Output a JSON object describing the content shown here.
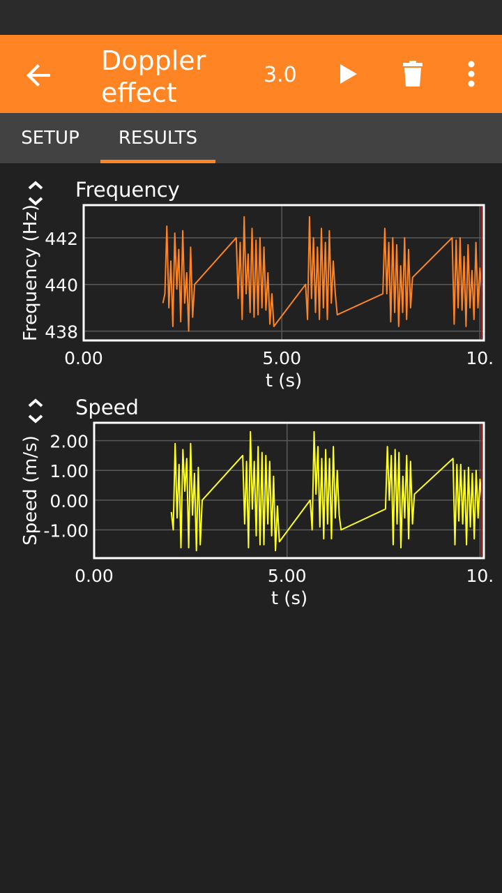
{
  "app_bar": {
    "title_line1": "Doppler",
    "title_line2": "effect",
    "rate": "3.0",
    "back_icon": "arrow-left-icon",
    "play_icon": "play-icon",
    "delete_icon": "trash-icon",
    "menu_icon": "more-vertical-icon"
  },
  "tabs": [
    {
      "label": "SETUP",
      "selected": false
    },
    {
      "label": "RESULTS",
      "selected": true
    }
  ],
  "colors": {
    "accent": "#ff8424",
    "frequency_line": "#ff8424",
    "speed_line": "#ffff1e"
  },
  "graphs": [
    {
      "title": "Frequency",
      "ylabel": "Frequency (Hz)",
      "xlabel": "t (s)",
      "yticks": [
        "442",
        "440",
        "438"
      ],
      "xticks": [
        "0.00",
        "5.00",
        "10."
      ]
    },
    {
      "title": "Speed",
      "ylabel": "Speed (m/s)",
      "xlabel": "t (s)",
      "yticks": [
        "2.00",
        "1.00",
        "0.00",
        "-1.00"
      ],
      "xticks": [
        "0.00",
        "5.00",
        "10."
      ]
    }
  ],
  "chart_data": [
    {
      "type": "line",
      "title": "Frequency",
      "xlabel": "t (s)",
      "ylabel": "Frequency (Hz)",
      "xlim": [
        0,
        10.1
      ],
      "ylim": [
        437.6,
        443.4
      ],
      "grid": true,
      "series": [
        {
          "x": [
            2.0,
            2.05,
            2.1,
            2.15,
            2.2,
            2.25,
            2.3,
            2.35,
            2.4,
            2.45,
            2.5,
            2.55,
            2.6,
            2.65,
            2.7,
            2.75,
            2.8,
            3.85,
            3.9,
            3.95,
            4.0,
            4.05,
            4.1,
            4.15,
            4.2,
            4.25,
            4.3,
            4.35,
            4.4,
            4.45,
            4.5,
            4.55,
            4.6,
            4.65,
            4.7,
            4.75,
            4.8,
            5.6,
            5.65,
            5.7,
            5.75,
            5.8,
            5.85,
            5.9,
            5.95,
            6.0,
            6.05,
            6.1,
            6.15,
            6.2,
            6.25,
            6.3,
            6.35,
            6.4,
            7.55,
            7.6,
            7.65,
            7.7,
            7.75,
            7.8,
            7.85,
            7.9,
            7.95,
            8.0,
            8.05,
            8.1,
            8.15,
            8.2,
            8.25,
            8.3,
            9.3,
            9.35,
            9.4,
            9.45,
            9.5,
            9.55,
            9.6,
            9.65,
            9.7,
            9.75,
            9.8,
            9.85,
            9.9,
            9.95,
            10.0,
            10.05
          ],
          "y": [
            439.2,
            439.6,
            442.5,
            439.0,
            441.0,
            438.2,
            442.2,
            439.8,
            441.5,
            438.4,
            442.3,
            439.2,
            440.5,
            438.0,
            441.6,
            438.6,
            440.0,
            442.0,
            439.4,
            441.8,
            438.5,
            442.9,
            439.6,
            441.3,
            438.8,
            442.4,
            438.6,
            441.9,
            438.7,
            442.0,
            439.0,
            441.6,
            438.9,
            440.5,
            438.3,
            439.6,
            438.2,
            440.0,
            438.5,
            442.9,
            439.4,
            442.0,
            438.8,
            441.6,
            438.5,
            442.4,
            439.0,
            441.8,
            438.5,
            442.3,
            439.2,
            441.0,
            439.6,
            438.7,
            439.6,
            442.4,
            439.6,
            441.8,
            438.4,
            442.0,
            438.8,
            441.7,
            438.2,
            440.8,
            438.8,
            442.0,
            438.5,
            441.5,
            439.0,
            440.3,
            442.0,
            438.3,
            441.9,
            439.0,
            442.0,
            438.9,
            441.2,
            438.2,
            441.7,
            439.0,
            440.6,
            438.5,
            441.8,
            439.0,
            440.7,
            439.7
          ]
        }
      ]
    },
    {
      "type": "line",
      "title": "Speed",
      "xlabel": "t (s)",
      "ylabel": "Speed (m/s)",
      "xlim": [
        0,
        10.1
      ],
      "ylim": [
        -1.95,
        2.6
      ],
      "grid": true,
      "series": [
        {
          "x": [
            2.0,
            2.05,
            2.1,
            2.15,
            2.2,
            2.25,
            2.3,
            2.35,
            2.4,
            2.45,
            2.5,
            2.55,
            2.6,
            2.65,
            2.7,
            2.75,
            2.8,
            3.85,
            3.9,
            3.95,
            4.0,
            4.05,
            4.1,
            4.15,
            4.2,
            4.25,
            4.3,
            4.35,
            4.4,
            4.45,
            4.5,
            4.55,
            4.6,
            4.65,
            4.7,
            4.75,
            4.8,
            5.6,
            5.65,
            5.7,
            5.75,
            5.8,
            5.85,
            5.9,
            5.95,
            6.0,
            6.05,
            6.1,
            6.15,
            6.2,
            6.25,
            6.3,
            6.35,
            6.4,
            7.55,
            7.6,
            7.65,
            7.7,
            7.75,
            7.8,
            7.85,
            7.9,
            7.95,
            8.0,
            8.05,
            8.1,
            8.15,
            8.2,
            8.25,
            8.3,
            9.3,
            9.35,
            9.4,
            9.45,
            9.5,
            9.55,
            9.6,
            9.65,
            9.7,
            9.75,
            9.8,
            9.85,
            9.9,
            9.95,
            10.0,
            10.05
          ],
          "y": [
            -0.4,
            -1.0,
            1.9,
            -0.6,
            1.2,
            -1.6,
            1.7,
            0.3,
            1.4,
            -1.6,
            1.9,
            -0.5,
            0.9,
            -1.7,
            1.1,
            -1.5,
            0.0,
            1.5,
            -0.8,
            1.3,
            -1.6,
            2.3,
            -0.3,
            1.3,
            -1.2,
            1.8,
            -1.5,
            1.6,
            -1.5,
            1.5,
            -0.8,
            1.3,
            -1.2,
            0.8,
            -1.7,
            -0.2,
            -1.4,
            0.0,
            -1.0,
            2.3,
            0.2,
            1.8,
            -0.9,
            1.4,
            -1.3,
            1.7,
            -0.8,
            1.4,
            -1.3,
            1.8,
            -0.6,
            1.0,
            -0.5,
            -1.0,
            -0.3,
            1.8,
            0.0,
            1.5,
            -1.5,
            1.7,
            -0.8,
            1.6,
            -1.6,
            0.8,
            -0.6,
            1.5,
            -1.3,
            1.3,
            -0.8,
            0.2,
            1.4,
            -1.5,
            1.2,
            -0.7,
            1.2,
            -0.8,
            1.0,
            -1.5,
            1.1,
            -0.9,
            0.9,
            -1.3,
            1.0,
            -0.6,
            0.7,
            0.0
          ]
        }
      ]
    }
  ]
}
